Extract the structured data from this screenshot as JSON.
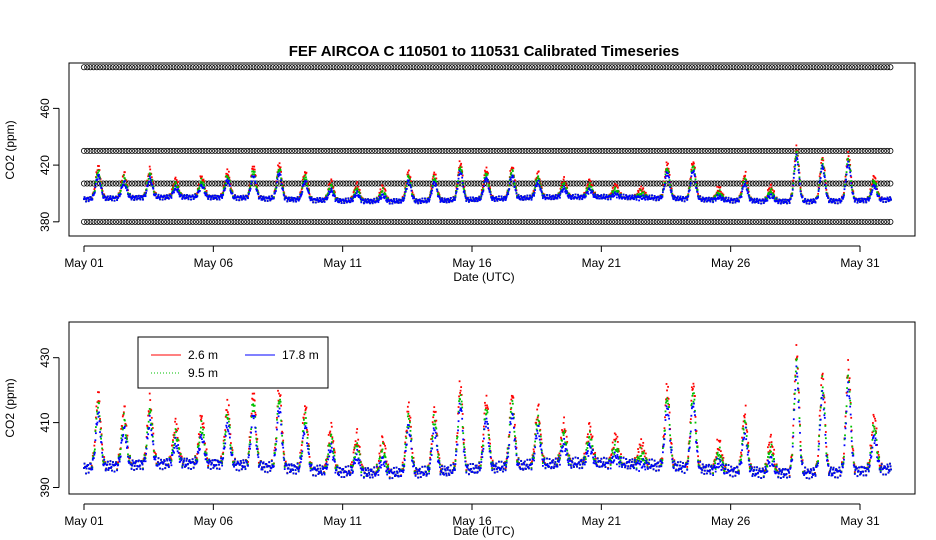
{
  "chart_data": [
    {
      "type": "scatter",
      "title": "FEF   AIRCOA  C    110501  to  110531   Calibrated Timeseries",
      "xlabel": "Date (UTC)",
      "ylabel": "CO2 (ppm)",
      "xlim": [
        0,
        31.4
      ],
      "ylim": [
        370,
        492
      ],
      "x_ticks": [
        {
          "day": 0,
          "label": "May 01"
        },
        {
          "day": 5,
          "label": "May 06"
        },
        {
          "day": 10,
          "label": "May 11"
        },
        {
          "day": 15,
          "label": "May 16"
        },
        {
          "day": 20,
          "label": "May 21"
        },
        {
          "day": 25,
          "label": "May 26"
        },
        {
          "day": 30,
          "label": "May 31"
        }
      ],
      "y_ticks": [
        {
          "value": 380,
          "label": "380"
        },
        {
          "value": 420,
          "label": "420"
        },
        {
          "value": 460,
          "label": "460"
        }
      ],
      "calibration_levels": [
        489,
        430,
        407,
        380
      ],
      "calibration_range": [
        0,
        31.2
      ],
      "series": [
        {
          "name": "2.6 m",
          "color": "#ff0000"
        },
        {
          "name": "9.5 m",
          "color": "#00c000"
        },
        {
          "name": "17.8 m",
          "color": "#0000ff"
        }
      ],
      "calibration_color": "#000000"
    },
    {
      "type": "scatter",
      "xlabel": "Date (UTC)",
      "ylabel": "CO2 (ppm)",
      "xlim": [
        0,
        31.4
      ],
      "ylim": [
        388,
        441
      ],
      "x_ticks": [
        {
          "day": 0,
          "label": "May 01"
        },
        {
          "day": 5,
          "label": "May 06"
        },
        {
          "day": 10,
          "label": "May 11"
        },
        {
          "day": 15,
          "label": "May 16"
        },
        {
          "day": 20,
          "label": "May 21"
        },
        {
          "day": 25,
          "label": "May 26"
        },
        {
          "day": 30,
          "label": "May 31"
        }
      ],
      "y_ticks": [
        {
          "value": 390,
          "label": "390"
        },
        {
          "value": 410,
          "label": "410"
        },
        {
          "value": 430,
          "label": "430"
        }
      ],
      "legend": [
        {
          "label": "2.6 m",
          "color": "#ff0000"
        },
        {
          "label": "9.5 m",
          "color": "#00c000"
        },
        {
          "label": "17.8 m",
          "color": "#0000ff"
        }
      ],
      "legend_position": "top-left"
    }
  ],
  "daily_peaks_17_8m": [
    {
      "day": 0.6,
      "value": 412
    },
    {
      "day": 1.6,
      "value": 407
    },
    {
      "day": 2.6,
      "value": 409
    },
    {
      "day": 3.6,
      "value": 402
    },
    {
      "day": 4.6,
      "value": 404
    },
    {
      "day": 5.6,
      "value": 408
    },
    {
      "day": 6.6,
      "value": 412
    },
    {
      "day": 7.6,
      "value": 414
    },
    {
      "day": 8.6,
      "value": 409
    },
    {
      "day": 9.6,
      "value": 403
    },
    {
      "day": 10.6,
      "value": 401
    },
    {
      "day": 11.6,
      "value": 400
    },
    {
      "day": 12.6,
      "value": 410
    },
    {
      "day": 13.6,
      "value": 409
    },
    {
      "day": 14.6,
      "value": 416
    },
    {
      "day": 15.6,
      "value": 411
    },
    {
      "day": 16.6,
      "value": 412
    },
    {
      "day": 17.6,
      "value": 407
    },
    {
      "day": 18.6,
      "value": 402
    },
    {
      "day": 19.6,
      "value": 401
    },
    {
      "day": 20.6,
      "value": 398
    },
    {
      "day": 21.6,
      "value": 396
    },
    {
      "day": 22.6,
      "value": 414
    },
    {
      "day": 23.6,
      "value": 416
    },
    {
      "day": 24.6,
      "value": 398
    },
    {
      "day": 25.6,
      "value": 408
    },
    {
      "day": 26.6,
      "value": 400
    },
    {
      "day": 27.6,
      "value": 427
    },
    {
      "day": 28.6,
      "value": 420
    },
    {
      "day": 29.6,
      "value": 422
    },
    {
      "day": 30.6,
      "value": 406
    }
  ],
  "spike_offsets": {
    "red_extra": 6,
    "green_extra": 3
  }
}
